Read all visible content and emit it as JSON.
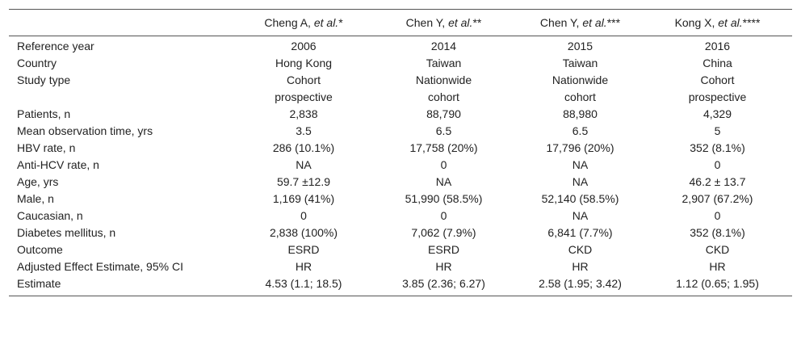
{
  "table": {
    "headers": [
      {
        "author": "",
        "etal": "",
        "suffix": ""
      },
      {
        "author": "Cheng A, ",
        "etal": "et al.",
        "suffix": "*"
      },
      {
        "author": "Chen Y, ",
        "etal": "et al.",
        "suffix": "**"
      },
      {
        "author": "Chen Y, ",
        "etal": "et al.",
        "suffix": "***"
      },
      {
        "author": "Kong X, ",
        "etal": "et al.",
        "suffix": "****"
      }
    ],
    "rows": [
      {
        "label": "Reference year",
        "values": [
          "2006",
          "2014",
          "2015",
          "2016"
        ]
      },
      {
        "label": "Country",
        "values": [
          "Hong Kong",
          "Taiwan",
          "Taiwan",
          "China"
        ]
      },
      {
        "label": "Study type",
        "values": [
          "Cohort\nprospective",
          "Nationwide\ncohort",
          "Nationwide\ncohort",
          "Cohort\nprospective"
        ]
      },
      {
        "label": "Patients, n",
        "values": [
          "2,838",
          "88,790",
          "88,980",
          "4,329"
        ]
      },
      {
        "label": "Mean observation time, yrs",
        "values": [
          "3.5",
          "6.5",
          "6.5",
          "5"
        ]
      },
      {
        "label": "HBV rate, n",
        "values": [
          "286 (10.1%)",
          "17,758 (20%)",
          "17,796 (20%)",
          "352 (8.1%)"
        ]
      },
      {
        "label": "Anti-HCV rate, n",
        "values": [
          "NA",
          "0",
          "NA",
          "0"
        ]
      },
      {
        "label": "Age, yrs",
        "values": [
          "59.7 ±12.9",
          "NA",
          "NA",
          "46.2 ± 13.7"
        ]
      },
      {
        "label": "Male, n",
        "values": [
          "1,169 (41%)",
          "51,990 (58.5%)",
          "52,140 (58.5%)",
          "2,907 (67.2%)"
        ]
      },
      {
        "label": "Caucasian, n",
        "values": [
          "0",
          "0",
          "NA",
          "0"
        ]
      },
      {
        "label": "Diabetes mellitus, n",
        "values": [
          "2,838 (100%)",
          "7,062 (7.9%)",
          "6,841 (7.7%)",
          "352 (8.1%)"
        ]
      },
      {
        "label": "Outcome",
        "values": [
          "ESRD",
          "ESRD",
          "CKD",
          "CKD"
        ]
      },
      {
        "label": "Adjusted Effect Estimate, 95% CI",
        "values": [
          "HR",
          "HR",
          "HR",
          "HR"
        ]
      },
      {
        "label": "Estimate",
        "values": [
          "4.53 (1.1; 18.5)",
          "3.85 (2.36; 6.27)",
          "2.58 (1.95; 3.42)",
          "1.12 (0.65; 1.95)"
        ]
      }
    ]
  }
}
